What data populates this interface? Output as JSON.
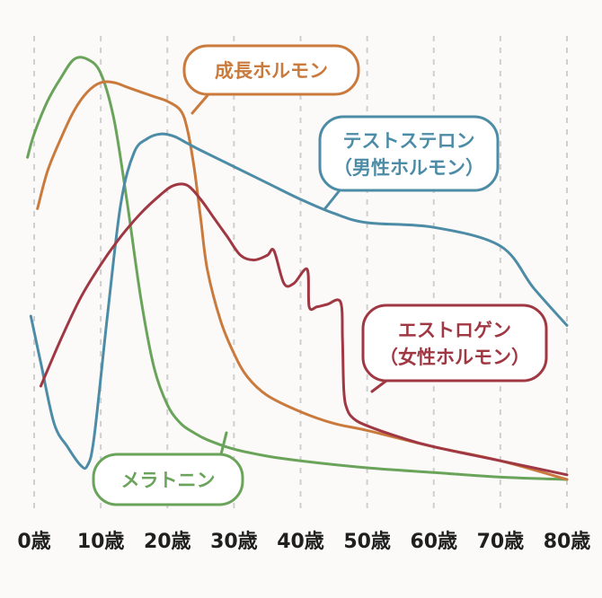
{
  "chart_data": {
    "type": "line",
    "title": "",
    "xlabel": "",
    "ylabel": "",
    "xlim": [
      0,
      80
    ],
    "x_ticks": [
      "0歳",
      "10歳",
      "20歳",
      "30歳",
      "40歳",
      "50歳",
      "60歳",
      "70歳",
      "80歳"
    ],
    "y_axis_shown": false,
    "ylim": [
      0,
      100
    ],
    "grid": "vertical dashed",
    "legend": "callout labels on the lines",
    "series": [
      {
        "name": "メラトニン",
        "label_lines": [
          "メラトニン"
        ],
        "color": "#6aa35a",
        "x": [
          -1,
          0,
          2,
          4,
          6,
          8,
          10,
          12,
          14,
          16,
          18,
          20,
          22,
          24,
          26,
          30,
          35,
          40,
          50,
          60,
          70,
          80
        ],
        "y": [
          74,
          79,
          86,
          91,
          95,
          95,
          92,
          82,
          64,
          44,
          29,
          21,
          17,
          15,
          13.5,
          11.5,
          10,
          9,
          7.5,
          6.5,
          5.5,
          5
        ]
      },
      {
        "name": "成長ホルモン",
        "label_lines": [
          "成長ホルモン"
        ],
        "color": "#c97a3c",
        "x": [
          0.5,
          2,
          4,
          6,
          8,
          10,
          12,
          14,
          16,
          18,
          20,
          22,
          23,
          24,
          25,
          26,
          28,
          30,
          32,
          35,
          40,
          45,
          50,
          60,
          70,
          80
        ],
        "y": [
          63,
          71,
          78,
          84,
          88,
          90,
          90,
          89,
          88,
          87,
          86,
          84,
          80,
          72,
          61,
          50,
          39,
          32,
          27,
          23,
          19.5,
          17,
          15.5,
          12,
          9,
          5
        ]
      },
      {
        "name": "テストステロン",
        "label_lines": [
          "テストステロン",
          "（男性ホルモン）"
        ],
        "color": "#4d8ca6",
        "x": [
          -0.5,
          1,
          3,
          5,
          7,
          8,
          9,
          11,
          13,
          15,
          17,
          19,
          21,
          23,
          25,
          30,
          35,
          40,
          45,
          50,
          60,
          70,
          75,
          80
        ],
        "y": [
          40,
          30,
          17,
          12,
          8,
          8,
          14,
          40,
          64,
          75,
          78,
          79,
          78.5,
          77,
          75.5,
          72,
          68.5,
          65,
          62,
          60,
          59,
          55,
          46,
          38
        ]
      },
      {
        "name": "エストロゲン",
        "label_lines": [
          "エストロゲン",
          "（女性ホルモン）"
        ],
        "color": "#a03844",
        "x": [
          1,
          4,
          7,
          10,
          13,
          16,
          19,
          21,
          23,
          25,
          27,
          29,
          31,
          33,
          35,
          36,
          37.5,
          39,
          41,
          41.3,
          42.5,
          44,
          46,
          46.3,
          46.5,
          47,
          48,
          50,
          55,
          60,
          70,
          80
        ],
        "y": [
          25,
          35,
          44,
          51,
          57,
          62,
          66,
          68,
          68,
          65,
          61,
          57,
          53,
          52,
          53,
          54,
          47,
          47,
          50,
          42,
          42,
          42.5,
          43,
          35,
          24,
          20,
          18,
          16.5,
          14,
          12,
          9,
          6
        ]
      }
    ]
  }
}
